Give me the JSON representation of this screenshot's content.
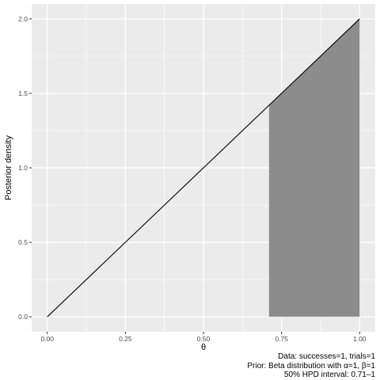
{
  "chart_data": {
    "type": "area",
    "xlabel": "θ",
    "ylabel": "Posterior density",
    "xlim": [
      -0.05,
      1.05
    ],
    "ylim": [
      -0.1,
      2.1
    ],
    "x_ticks": [
      0.0,
      0.25,
      0.5,
      0.75,
      1.0
    ],
    "x_tick_labels": [
      "0.00",
      "0.25",
      "0.50",
      "0.75",
      "1.00"
    ],
    "y_ticks": [
      0.0,
      0.5,
      1.0,
      1.5,
      2.0
    ],
    "y_tick_labels": [
      "0.0",
      "0.5",
      "1.0",
      "1.5",
      "2.0"
    ],
    "grid": true,
    "density_line": {
      "x": [
        0.0,
        1.0
      ],
      "y": [
        0.0,
        2.0
      ]
    },
    "shaded_interval": {
      "from": 0.71,
      "to": 1.0
    },
    "colors": {
      "panel_background": "#ebebeb",
      "grid": "#ffffff",
      "line": "#000000",
      "shade": "#8c8c8c"
    }
  },
  "caption": {
    "line1": "Data: successes=1, trials=1",
    "line2": "Prior: Beta distribution with α=1, β=1",
    "line3": "50% HPD interval: 0.71–1"
  }
}
